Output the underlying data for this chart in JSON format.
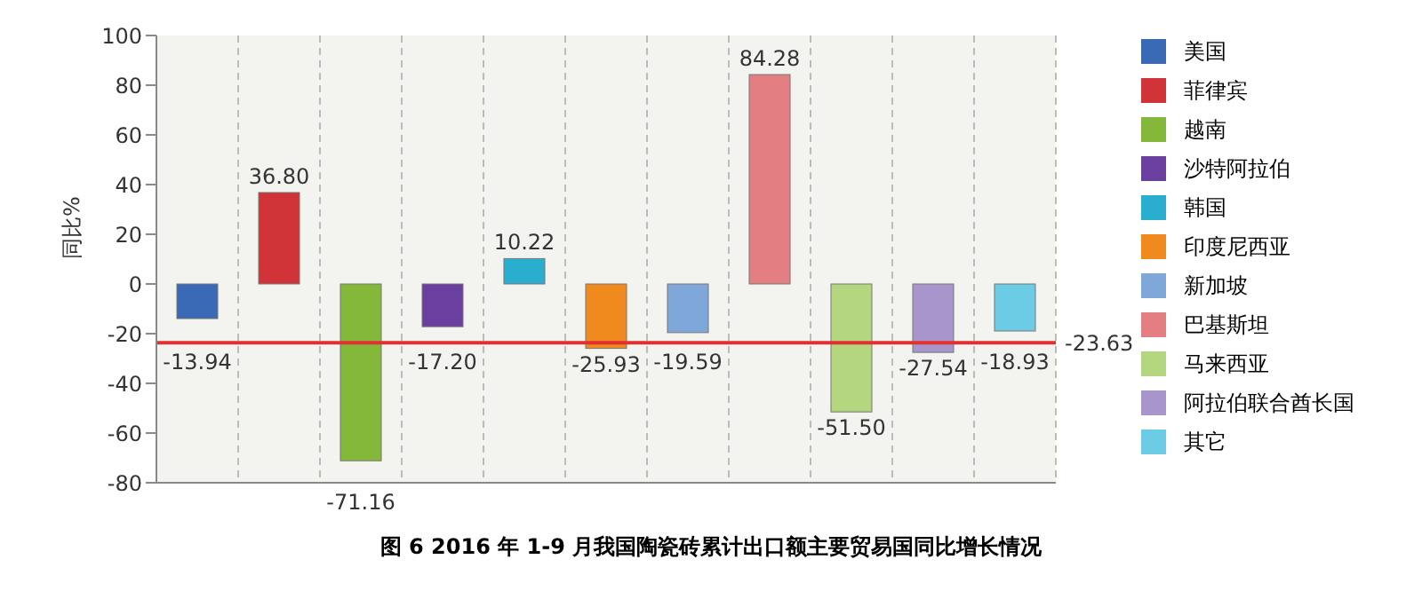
{
  "chart_data": {
    "type": "bar",
    "title": "图 6   2016 年 1-9 月我国陶瓷砖累计出口额主要贸易国同比增长情况",
    "ylabel": "同比%",
    "categories": [
      null,
      null,
      null,
      null,
      null,
      null,
      null,
      null,
      null,
      null,
      null
    ],
    "stacked": true,
    "series": [
      {
        "name": "美国",
        "color": "#3a6ab5",
        "values": [
          -13.94,
          null,
          null,
          null,
          null,
          null,
          null,
          null,
          null,
          null,
          null
        ],
        "value_labels": [
          "-13.94",
          null,
          null,
          null,
          null,
          null,
          null,
          null,
          null,
          null,
          null
        ]
      },
      {
        "name": "菲律宾",
        "color": "#d13438",
        "values": [
          null,
          36.8,
          null,
          null,
          null,
          null,
          null,
          null,
          null,
          null,
          null
        ],
        "value_labels": [
          null,
          "36.80",
          null,
          null,
          null,
          null,
          null,
          null,
          null,
          null,
          null
        ]
      },
      {
        "name": "越南",
        "color": "#84b83a",
        "values": [
          null,
          null,
          -71.16,
          null,
          null,
          null,
          null,
          null,
          null,
          null,
          null
        ],
        "value_labels": [
          null,
          null,
          "-71.16",
          null,
          null,
          null,
          null,
          null,
          null,
          null,
          null
        ]
      },
      {
        "name": "沙特阿拉伯",
        "color": "#6b3fa0",
        "values": [
          null,
          null,
          null,
          -17.2,
          null,
          null,
          null,
          null,
          null,
          null,
          null
        ],
        "value_labels": [
          null,
          null,
          null,
          "-17.20",
          null,
          null,
          null,
          null,
          null,
          null,
          null
        ]
      },
      {
        "name": "韩国",
        "color": "#2aaed0",
        "values": [
          null,
          null,
          null,
          null,
          10.22,
          null,
          null,
          null,
          null,
          null,
          null
        ],
        "value_labels": [
          null,
          null,
          null,
          null,
          "10.22",
          null,
          null,
          null,
          null,
          null,
          null
        ]
      },
      {
        "name": "印度尼西亚",
        "color": "#f08a1e",
        "values": [
          null,
          null,
          null,
          null,
          null,
          -25.93,
          null,
          null,
          null,
          null,
          null
        ],
        "value_labels": [
          null,
          null,
          null,
          null,
          null,
          "-25.93",
          null,
          null,
          null,
          null,
          null
        ]
      },
      {
        "name": "新加坡",
        "color": "#7fa7da",
        "values": [
          null,
          null,
          null,
          null,
          null,
          null,
          -19.59,
          null,
          null,
          null,
          null
        ],
        "value_labels": [
          null,
          null,
          null,
          null,
          null,
          null,
          "-19.59",
          null,
          null,
          null,
          null
        ]
      },
      {
        "name": "巴基斯坦",
        "color": "#e37f82",
        "values": [
          null,
          null,
          null,
          null,
          null,
          null,
          null,
          84.28,
          null,
          null,
          null
        ],
        "value_labels": [
          null,
          null,
          null,
          null,
          null,
          null,
          null,
          "84.28",
          null,
          null,
          null
        ]
      },
      {
        "name": "马来西亚",
        "color": "#b3d67f",
        "values": [
          null,
          null,
          null,
          null,
          null,
          null,
          null,
          null,
          -51.5,
          null,
          null
        ],
        "value_labels": [
          null,
          null,
          null,
          null,
          null,
          null,
          null,
          null,
          "-51.50",
          null,
          null
        ]
      },
      {
        "name": "阿拉伯联合酋长国",
        "color": "#a895cc",
        "values": [
          null,
          null,
          null,
          null,
          null,
          null,
          null,
          null,
          null,
          -27.54,
          null
        ],
        "value_labels": [
          null,
          null,
          null,
          null,
          null,
          null,
          null,
          null,
          null,
          "-27.54",
          null
        ]
      },
      {
        "name": "其它",
        "color": "#6ccbe5",
        "values": [
          null,
          null,
          null,
          null,
          null,
          null,
          null,
          null,
          null,
          null,
          -18.93
        ],
        "value_labels": [
          null,
          null,
          null,
          null,
          null,
          null,
          null,
          null,
          null,
          null,
          "-18.93"
        ]
      }
    ],
    "ylim": [
      -80,
      100
    ],
    "yticks": [
      -80,
      -60,
      -40,
      -20,
      0,
      20,
      40,
      60,
      80,
      100
    ],
    "ref_lines": [
      {
        "axis": "y",
        "value": -23.63,
        "label": "-23.63",
        "color": "#e03030"
      }
    ],
    "grid": "x",
    "legend": "right",
    "tick_labels": "y"
  }
}
